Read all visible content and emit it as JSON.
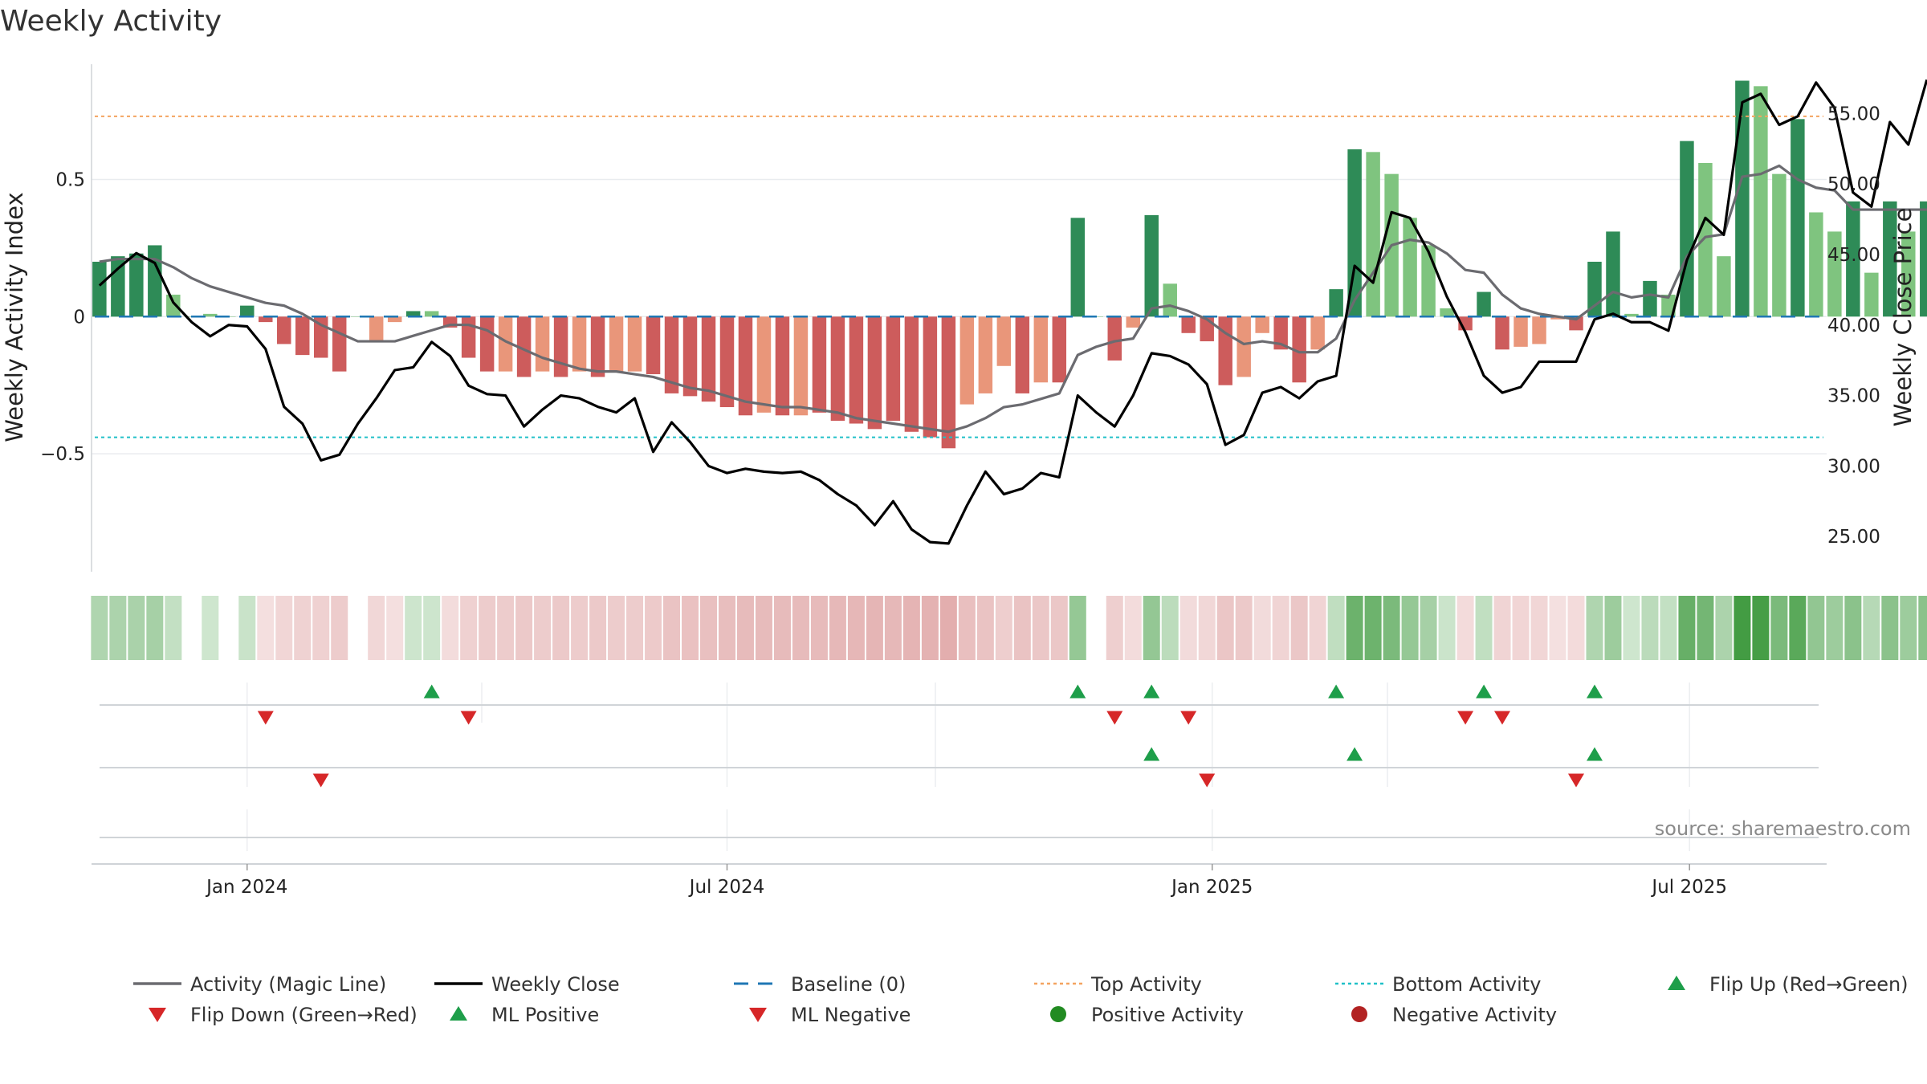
{
  "chart_data": {
    "type": "bar",
    "title": "Weekly Activity",
    "ylabel_left": "Weekly Activity Index",
    "ylabel_right": "Weekly Close Price",
    "source": "source: sharemaestro.com",
    "x_tick_labels": [
      {
        "date": "2024-01-01",
        "label": "Jan 2024"
      },
      {
        "date": "2024-07-01",
        "label": "Jul 2024"
      },
      {
        "date": "2025-01-01",
        "label": "Jan 2025"
      },
      {
        "date": "2025-07-01",
        "label": "Jul 2025"
      }
    ],
    "y_left_ticks": [
      {
        "value": 0.5,
        "label": "0.5"
      },
      {
        "value": 0,
        "label": "0"
      },
      {
        "value": -0.5,
        "label": "−0.5"
      }
    ],
    "y_right_ticks": [
      {
        "value": 55,
        "label": "55.00"
      },
      {
        "value": 50,
        "label": "50.00"
      },
      {
        "value": 45,
        "label": "45.00"
      },
      {
        "value": 40,
        "label": "40.00"
      },
      {
        "value": 35,
        "label": "35.00"
      },
      {
        "value": 30,
        "label": "30.00"
      },
      {
        "value": 25,
        "label": "25.00"
      }
    ],
    "y_left_range": [
      -0.93,
      0.92
    ],
    "y_right_range": [
      22.5,
      58.5
    ],
    "top_activity": 0.73,
    "bottom_activity": -0.44,
    "start_week": "2023-11-06",
    "x_range": [
      "2023-11-03",
      "2025-08-22"
    ],
    "colors": {
      "strong_positive": "#2e8b57",
      "weak_positive": "#7fc47f",
      "strong_negative": "#cd5c5c",
      "weak_negative": "#e9967a",
      "magic_line": "#6b6b70",
      "close_line": "#000000",
      "baseline": "#1f77b4",
      "top_line": "#f4a460",
      "bottom_line": "#20c0c8",
      "flip_up": "#1e9e4a",
      "flip_down": "#d62728",
      "positive_activity": "#228b22",
      "negative_activity": "#b22222"
    },
    "series": [
      {
        "name": "Weekly Activity",
        "values": [
          0.2,
          0.22,
          0.23,
          0.26,
          0.08,
          0,
          0.01,
          0,
          0.04,
          -0.02,
          -0.1,
          -0.14,
          -0.15,
          -0.2,
          0,
          -0.09,
          -0.02,
          0.02,
          0.02,
          -0.04,
          -0.15,
          -0.2,
          -0.2,
          -0.22,
          -0.2,
          -0.22,
          -0.2,
          -0.22,
          -0.2,
          -0.2,
          -0.21,
          -0.28,
          -0.29,
          -0.31,
          -0.33,
          -0.36,
          -0.35,
          -0.36,
          -0.36,
          -0.35,
          -0.38,
          -0.39,
          -0.41,
          -0.38,
          -0.42,
          -0.44,
          -0.48,
          -0.32,
          -0.28,
          -0.18,
          -0.28,
          -0.24,
          -0.24,
          0.36,
          0,
          -0.16,
          -0.04,
          0.37,
          0.12,
          -0.06,
          -0.09,
          -0.25,
          -0.22,
          -0.06,
          -0.12,
          -0.24,
          -0.12,
          0.1,
          0.61,
          0.6,
          0.52,
          0.36,
          0.26,
          0.03,
          -0.05,
          0.09,
          -0.12,
          -0.11,
          -0.1,
          -0.01,
          -0.05,
          0.2,
          0.31,
          0.01,
          0.13,
          0.08,
          0.64,
          0.56,
          0.22,
          0.86,
          0.84,
          0.52,
          0.72,
          0.38,
          0.31,
          0.42,
          0.16,
          0.42,
          0.31,
          0.42
        ],
        "strength": [
          1,
          1,
          1,
          1,
          0,
          0,
          0,
          0,
          1,
          1,
          1,
          1,
          1,
          1,
          0,
          0,
          0,
          1,
          0,
          1,
          1,
          1,
          0,
          1,
          0,
          1,
          0,
          1,
          0,
          0,
          1,
          1,
          1,
          1,
          1,
          1,
          0,
          1,
          0,
          1,
          1,
          1,
          1,
          1,
          1,
          1,
          1,
          0,
          0,
          0,
          1,
          0,
          1,
          1,
          0,
          1,
          0,
          1,
          0,
          1,
          1,
          1,
          0,
          0,
          1,
          1,
          0,
          1,
          1,
          0,
          0,
          0,
          0,
          0,
          1,
          1,
          1,
          0,
          0,
          0,
          1,
          1,
          1,
          0,
          1,
          0,
          1,
          0,
          0,
          1,
          0,
          0,
          1,
          0,
          0,
          1,
          0,
          1,
          0,
          1
        ]
      },
      {
        "name": "Activity (Magic Line)",
        "values": [
          0.2,
          0.21,
          0.21,
          0.21,
          0.18,
          0.14,
          0.11,
          0.09,
          0.07,
          0.05,
          0.04,
          0.01,
          -0.03,
          -0.06,
          -0.09,
          -0.09,
          -0.09,
          -0.07,
          -0.05,
          -0.03,
          -0.03,
          -0.05,
          -0.09,
          -0.12,
          -0.15,
          -0.17,
          -0.19,
          -0.2,
          -0.2,
          -0.21,
          -0.22,
          -0.24,
          -0.26,
          -0.27,
          -0.29,
          -0.31,
          -0.32,
          -0.33,
          -0.33,
          -0.34,
          -0.35,
          -0.37,
          -0.38,
          -0.39,
          -0.4,
          -0.41,
          -0.42,
          -0.4,
          -0.37,
          -0.33,
          -0.32,
          -0.3,
          -0.28,
          -0.14,
          -0.11,
          -0.09,
          -0.08,
          0.03,
          0.04,
          0.02,
          -0.01,
          -0.06,
          -0.1,
          -0.09,
          -0.1,
          -0.13,
          -0.13,
          -0.08,
          0.06,
          0.16,
          0.26,
          0.28,
          0.27,
          0.23,
          0.17,
          0.16,
          0.08,
          0.03,
          0.01,
          0,
          -0.01,
          0.04,
          0.09,
          0.07,
          0.08,
          0.07,
          0.22,
          0.29,
          0.3,
          0.51,
          0.52,
          0.55,
          0.5,
          0.47,
          0.46,
          0.39,
          0.39,
          0.39,
          0.39,
          0.39
        ]
      },
      {
        "name": "Weekly Close",
        "values": [
          42.8,
          44,
          45.1,
          44.4,
          41.6,
          40.2,
          39.2,
          40,
          39.9,
          38.3,
          34.2,
          33,
          30.4,
          30.8,
          33,
          34.8,
          36.8,
          37,
          38.8,
          37.8,
          35.7,
          35.1,
          35,
          32.8,
          34,
          35,
          34.8,
          34.2,
          33.8,
          34.8,
          31,
          33.1,
          31.7,
          30,
          29.5,
          29.8,
          29.6,
          29.5,
          29.6,
          29,
          28,
          27.2,
          25.8,
          27.5,
          25.5,
          24.6,
          24.5,
          27.2,
          29.6,
          28,
          28.4,
          29.5,
          29.2,
          35,
          33.8,
          32.8,
          35,
          38,
          37.8,
          37.2,
          35.8,
          31.5,
          32.2,
          35.2,
          35.6,
          34.8,
          36,
          36.4,
          44.2,
          43,
          48,
          47.6,
          45.2,
          42,
          39.5,
          36.4,
          35.2,
          35.6,
          37.4,
          37.4,
          37.4,
          40.4,
          40.8,
          40.2,
          40.2,
          39.6,
          44.6,
          47.6,
          46.4,
          55.8,
          56.4,
          54.2,
          54.8,
          57.2,
          55.4,
          49.4,
          48.4,
          54.4,
          52.8,
          57.4
        ]
      },
      {
        "name": "Baseline (0)",
        "values": [
          0
        ]
      },
      {
        "name": "Top Activity",
        "values": [
          0.73
        ]
      },
      {
        "name": "Bottom Activity",
        "values": [
          -0.44
        ]
      }
    ],
    "flip_up_weeks": [
      18,
      53,
      57,
      67,
      75,
      81
    ],
    "flip_down_weeks": [
      9,
      20,
      55,
      59,
      74,
      76
    ],
    "ml_positive_weeks": [
      57,
      68,
      81
    ],
    "ml_negative_weeks": [
      12,
      60,
      80
    ],
    "legend": {
      "placement": "bottom",
      "items": [
        {
          "label": "Activity (Magic Line)",
          "symbol": "line-grey"
        },
        {
          "label": "Weekly Close",
          "symbol": "line-black"
        },
        {
          "label": "Baseline (0)",
          "symbol": "dashed-blue"
        },
        {
          "label": "Top Activity",
          "symbol": "dotted-orange"
        },
        {
          "label": "Bottom Activity",
          "symbol": "dotted-cyan"
        },
        {
          "label": "Flip Up (Red→Green)",
          "symbol": "triangle-up-green"
        },
        {
          "label": "Flip Down (Green→Red)",
          "symbol": "triangle-down-red"
        },
        {
          "label": "ML Positive",
          "symbol": "triangle-up-green"
        },
        {
          "label": "ML Negative",
          "symbol": "triangle-down-red"
        },
        {
          "label": "Positive Activity",
          "symbol": "circle-green"
        },
        {
          "label": "Negative Activity",
          "symbol": "circle-red"
        }
      ]
    }
  }
}
